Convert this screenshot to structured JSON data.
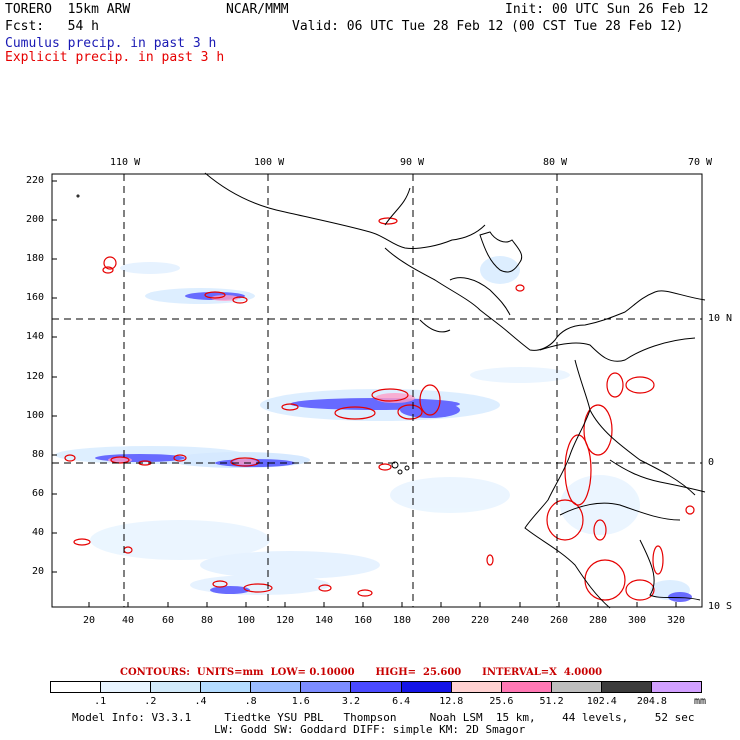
{
  "header": {
    "model": "TORERO  15km ARW",
    "center": "NCAR/MMM",
    "init": "Init: 00 UTC Sun 26 Feb 12",
    "fcst": "Fcst:   54 h",
    "valid": "Valid: 06 UTC Tue 28 Feb 12 (00 CST Tue 28 Feb 12)",
    "cumulus": "Cumulus precip. in past 3 h",
    "explicit": "Explicit precip. in past 3 h"
  },
  "map": {
    "lon_labels": [
      "110 W",
      "100 W",
      "90 W",
      "80 W",
      "70 W"
    ],
    "lat_labels": [
      "10 N",
      "0",
      "10 S"
    ],
    "y_ticks": [
      "220",
      "200",
      "180",
      "160",
      "140",
      "120",
      "100",
      "80",
      "60",
      "40",
      "20"
    ],
    "x_ticks": [
      "20",
      "40",
      "60",
      "80",
      "100",
      "120",
      "140",
      "160",
      "180",
      "200",
      "220",
      "240",
      "260",
      "280",
      "300",
      "320"
    ],
    "colors": {
      "land": "#000000",
      "grid": "#000000",
      "cumulus": "#1a1ab4",
      "explicit": "#e60000"
    }
  },
  "legend": {
    "contours": "CONTOURS:  UNITS=mm  LOW= 0.10000      HIGH=  25.600      INTERVAL=X  4.0000",
    "thresholds": [
      ".1",
      ".2",
      ".4",
      ".8",
      "1.6",
      "3.2",
      "6.4",
      "12.8",
      "25.6",
      "51.2",
      "102.4",
      "204.8"
    ],
    "units": "mm",
    "colors": [
      "#ffffff",
      "#e8f4ff",
      "#d2eafa",
      "#b4dcff",
      "#9bbcff",
      "#7c8cff",
      "#4a4aff",
      "#1414e6",
      "#ffd2d2",
      "#ff78b4",
      "#bebebe",
      "#3c3c3c",
      "#d2a0ff"
    ]
  },
  "footer": {
    "line1": "Model Info: V3.3.1     Tiedtke YSU PBL   Thompson     Noah LSM  15 km,    44 levels,    52 sec",
    "line2": "LW: Godd SW: Goddard DIFF: simple KM: 2D Smagor"
  }
}
